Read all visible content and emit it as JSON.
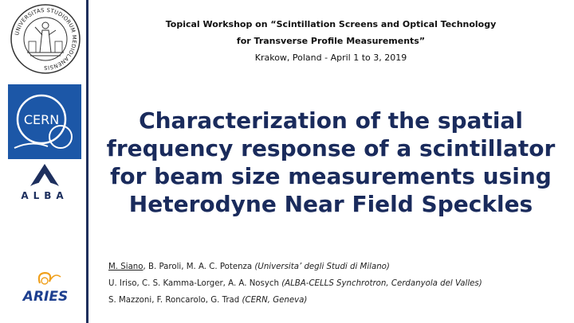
{
  "workshop": {
    "line1": "Topical Workshop on “Scintillation Screens and Optical Technology",
    "line2": "for Transverse Profile Measurements”",
    "location": "Krakow, Poland - April 1 to 3, 2019"
  },
  "title": {
    "line1": "Characterization of the spatial",
    "line2": "frequency response of a scintillator",
    "line3": "for beam size measurements using",
    "line4": "Heterodyne Near Field Speckles"
  },
  "authors": [
    {
      "lead": "M. Siano",
      "names": ", B. Paroli, M. A. C. Potenza ",
      "affiliation": "(Universita’ degli Studi di Milano)"
    },
    {
      "lead": "",
      "names": "U. Iriso, C. S. Kamma-Lorger, A. A. Nosych ",
      "affiliation": "(ALBA-CELLS Synchrotron, Cerdanyola del Valles)"
    },
    {
      "lead": "",
      "names": "S. Mazzoni, F. Roncarolo, G. Trad ",
      "affiliation": "(CERN, Geneva)"
    }
  ],
  "logos": {
    "seal_text": "UNIVERSITAS STUDIORUM MEDIOLANENSIS",
    "cern_text": "CERN",
    "alba_text": "ALBA",
    "aries_text": "ARIES"
  },
  "colors": {
    "title": "#1a2b5c",
    "rule": "#1f2f5c",
    "cern_blue": "#1c57a7",
    "aries_blue": "#1d3f8f",
    "aries_orange": "#f0a01c"
  }
}
